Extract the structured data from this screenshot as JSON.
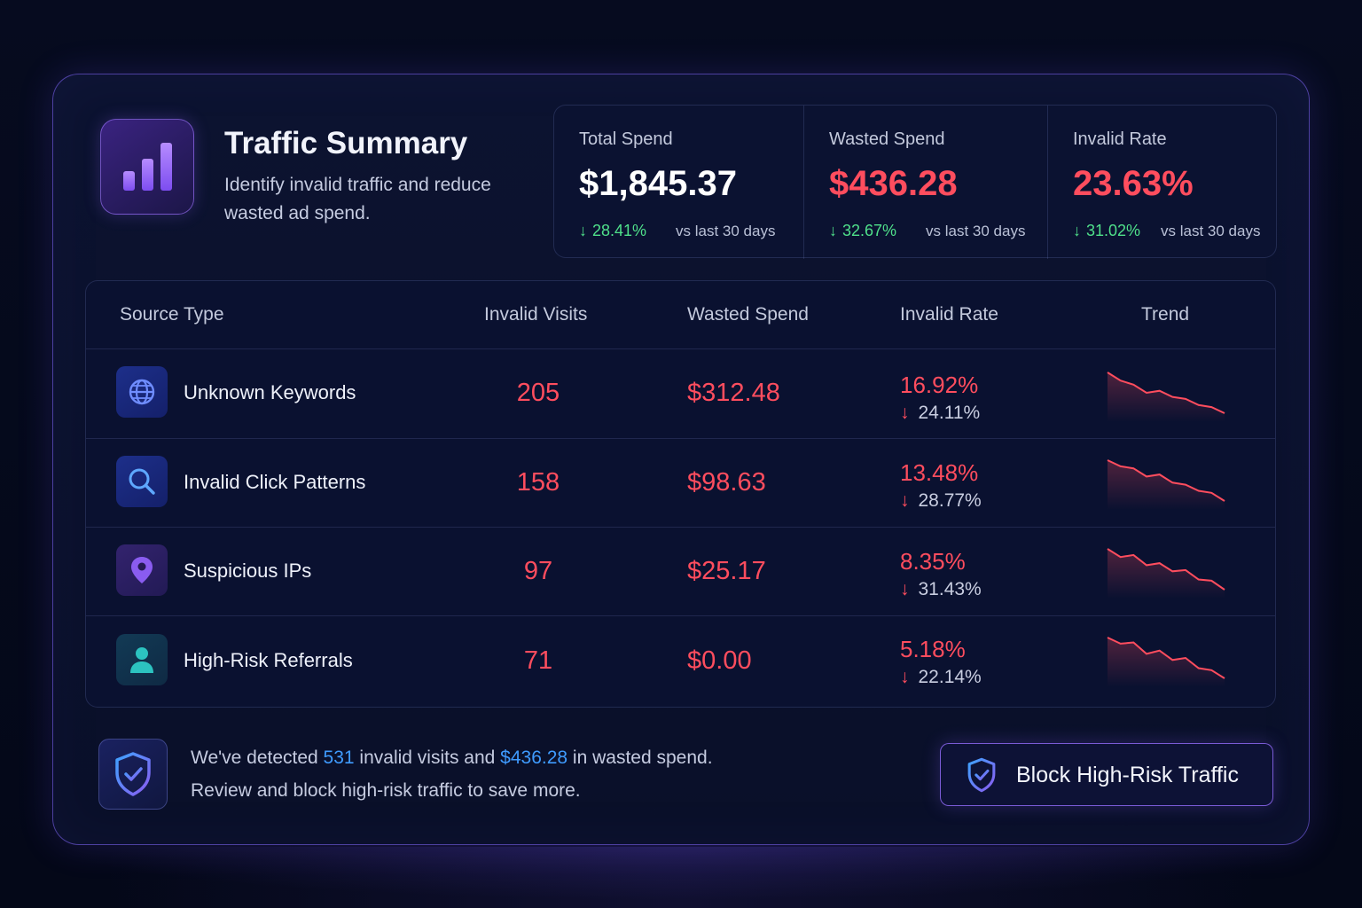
{
  "header": {
    "title": "Traffic Summary",
    "subtitle": "Identify invalid traffic and reduce wasted ad spend.",
    "icon": "bar-chart-icon"
  },
  "stats": [
    {
      "label": "Total Spend",
      "value": "$1,845.37",
      "change": "28.41%",
      "vs": "vs last 30 days",
      "value_color": "#ffffff"
    },
    {
      "label": "Wasted Spend",
      "value": "$436.28",
      "change": "32.67%",
      "vs": "vs last 30 days",
      "value_color": "#ff4d5e"
    },
    {
      "label": "Invalid Rate",
      "value": "23.63%",
      "change": "31.02%",
      "vs": "vs last 30 days",
      "value_color": "#ff4d5e"
    }
  ],
  "table": {
    "headers": [
      "Source Type",
      "Invalid Visits",
      "Wasted Spend",
      "Invalid Rate",
      "Trend"
    ],
    "rows": [
      {
        "name": "Unknown Keywords",
        "icon": "globe-icon",
        "visits": "205",
        "spend": "$312.48",
        "rate": "16.92%",
        "rate_change": "24.11%",
        "trend": [
          10,
          8,
          7,
          5,
          5.5,
          4,
          3.5,
          2,
          1.5,
          0
        ]
      },
      {
        "name": "Invalid Click Patterns",
        "icon": "search-icon",
        "visits": "158",
        "spend": "$98.63",
        "rate": "13.48%",
        "rate_change": "28.77%",
        "trend": [
          10,
          8.5,
          8,
          6,
          6.5,
          4.5,
          4,
          2.5,
          2,
          0
        ]
      },
      {
        "name": "Suspicious IPs",
        "icon": "location-pin-icon",
        "visits": "97",
        "spend": "$25.17",
        "rate": "8.35%",
        "rate_change": "31.43%",
        "trend": [
          10,
          8,
          8.5,
          6,
          6.5,
          4.5,
          4.8,
          2.5,
          2.2,
          0
        ]
      },
      {
        "name": "High-Risk Referrals",
        "icon": "user-icon",
        "visits": "71",
        "spend": "$0.00",
        "rate": "5.18%",
        "rate_change": "22.14%",
        "trend": [
          10,
          8.5,
          8.8,
          6,
          6.8,
          4.5,
          5,
          2.5,
          2,
          0
        ]
      }
    ]
  },
  "footer": {
    "line1_prefix": "We've detected ",
    "line1_visits": "531",
    "line1_mid": " invalid visits and ",
    "line1_spend": "$436.28",
    "line1_suffix": " in wasted spend.",
    "line2": "Review and block high-risk traffic to save more.",
    "icon": "shield-check-icon",
    "button_label": "Block High-Risk Traffic",
    "button_icon": "shield-check-icon"
  },
  "colors": {
    "danger": "#ff4d5e",
    "success": "#4fe08a",
    "highlight": "#3f9bff",
    "accent": "#8a63ff"
  }
}
